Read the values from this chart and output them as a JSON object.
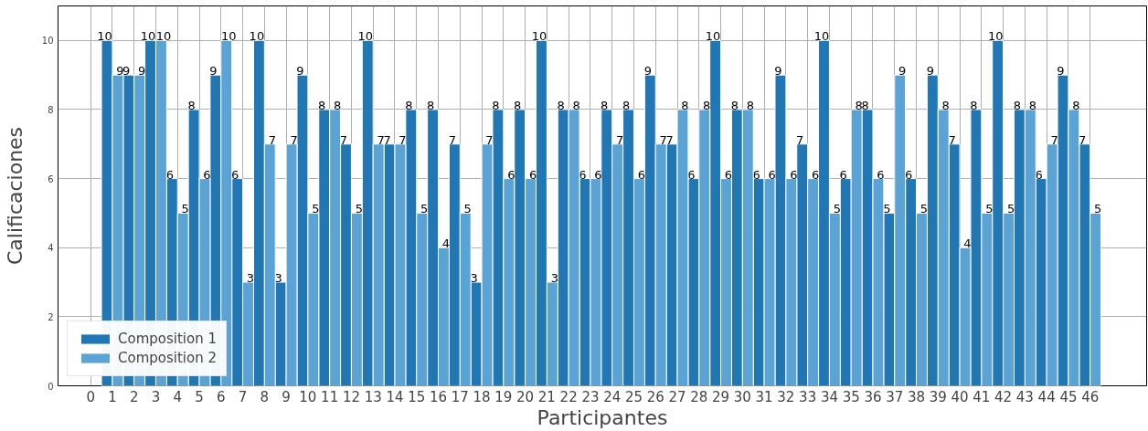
{
  "chart_data": {
    "type": "bar",
    "xlabel": "Participantes",
    "ylabel": "Calificaciones",
    "x": [
      1,
      2,
      3,
      4,
      5,
      6,
      7,
      8,
      9,
      10,
      11,
      12,
      13,
      14,
      15,
      16,
      17,
      18,
      19,
      20,
      21,
      22,
      23,
      24,
      25,
      26,
      27,
      28,
      29,
      30,
      31,
      32,
      33,
      34,
      35,
      36,
      37,
      38,
      39,
      40,
      41,
      42,
      43,
      44,
      45,
      46
    ],
    "series": [
      {
        "name": "Composition 1",
        "color": "#2077b4",
        "values": [
          10,
          9,
          10,
          6,
          8,
          9,
          6,
          10,
          3,
          9,
          8,
          7,
          10,
          7,
          8,
          8,
          7,
          3,
          8,
          8,
          10,
          8,
          6,
          8,
          8,
          9,
          7,
          6,
          10,
          8,
          6,
          9,
          7,
          10,
          6,
          8,
          5,
          6,
          9,
          7,
          8,
          10,
          8,
          6,
          9,
          7
        ]
      },
      {
        "name": "Composition 2",
        "color": "#5ba3d4",
        "values": [
          9,
          9,
          10,
          5,
          6,
          10,
          3,
          7,
          7,
          5,
          8,
          5,
          7,
          7,
          5,
          4,
          5,
          7,
          6,
          6,
          3,
          8,
          6,
          7,
          6,
          7,
          8,
          8,
          6,
          8,
          6,
          6,
          6,
          5,
          8,
          6,
          9,
          5,
          8,
          4,
          5,
          5,
          8,
          7,
          8,
          5
        ]
      }
    ],
    "xlim": [
      -1.5,
      48.6
    ],
    "ylim": [
      0,
      11
    ],
    "xticks": [
      0,
      1,
      2,
      3,
      4,
      5,
      6,
      7,
      8,
      9,
      10,
      11,
      12,
      13,
      14,
      15,
      16,
      17,
      18,
      19,
      20,
      21,
      22,
      23,
      24,
      25,
      26,
      27,
      28,
      29,
      30,
      31,
      32,
      33,
      34,
      35,
      36,
      37,
      38,
      39,
      40,
      41,
      42,
      43,
      44,
      45,
      46
    ],
    "yticks": [
      0,
      2,
      4,
      6,
      8,
      10
    ],
    "grid": true,
    "legend": "bottom left",
    "data_labels": true
  }
}
